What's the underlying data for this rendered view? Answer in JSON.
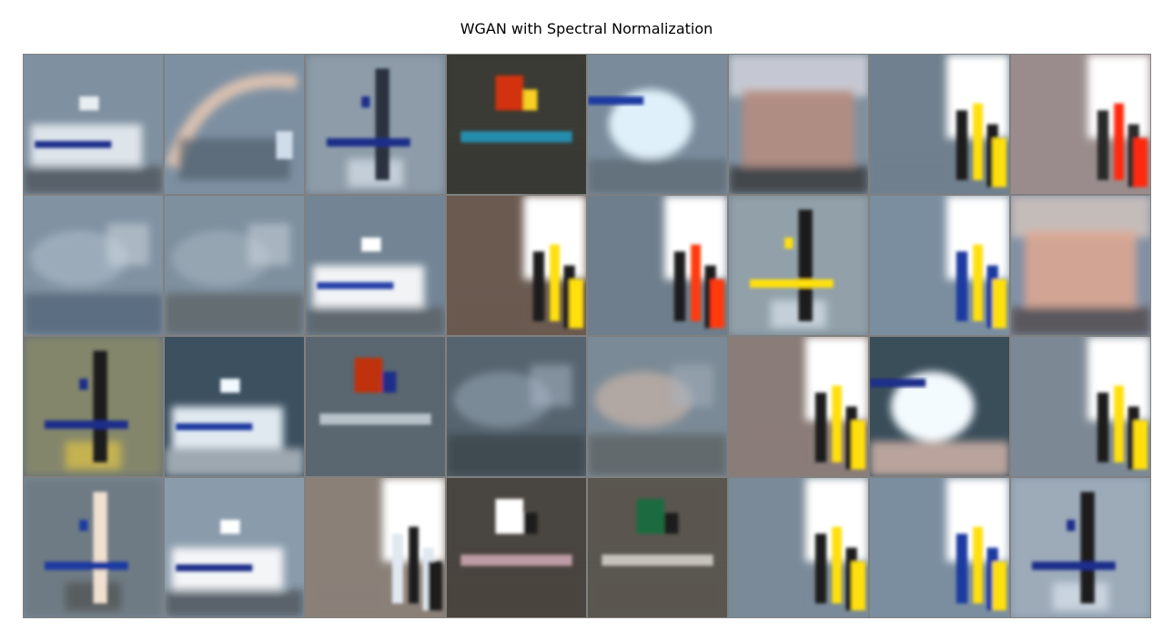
{
  "figure": {
    "title": "WGAN with Spectral Normalization"
  },
  "grid": {
    "rows": 4,
    "cols": 8,
    "cells": [
      {
        "id": "r1c1",
        "kind": "boat",
        "palette": [
          "#7f90a0",
          "#e8edf2",
          "#1c2f8a",
          "#303030"
        ]
      },
      {
        "id": "r1c2",
        "kind": "arc",
        "palette": [
          "#7d90a2",
          "#d8c0b0",
          "#4a5560",
          "#cfdcea"
        ]
      },
      {
        "id": "r1c3",
        "kind": "mast",
        "palette": [
          "#70808e",
          "#2a3040",
          "#1e2d8a",
          "#e6eef8"
        ]
      },
      {
        "id": "r1c4",
        "kind": "colorful",
        "palette": [
          "#3a3a34",
          "#d23010",
          "#f6d020",
          "#20b0e0"
        ]
      },
      {
        "id": "r1c5",
        "kind": "sky",
        "palette": [
          "#7a8c9c",
          "#e0f0fa",
          "#1c3aa0",
          "#5a6670"
        ]
      },
      {
        "id": "r1c6",
        "kind": "building",
        "palette": [
          "#8090a0",
          "#b88c7c",
          "#f4eef4",
          "#2a2a2a"
        ]
      },
      {
        "id": "r1c7",
        "kind": "bright",
        "palette": [
          "#70808e",
          "#ffffff",
          "#ffe010",
          "#1a1a1a"
        ]
      },
      {
        "id": "r1c8",
        "kind": "bright",
        "palette": [
          "#9a8c8c",
          "#ffffff",
          "#ff2a10",
          "#2a2a2a"
        ]
      },
      {
        "id": "r2c1",
        "kind": "haze",
        "palette": [
          "#8192a2",
          "#a6b6c4",
          "#394b60",
          "#d4dde6"
        ]
      },
      {
        "id": "r2c2",
        "kind": "haze",
        "palette": [
          "#7e8f9e",
          "#a0aebb",
          "#4a4a48",
          "#cfd9e4"
        ]
      },
      {
        "id": "r2c3",
        "kind": "boat",
        "palette": [
          "#738595",
          "#ffffff",
          "#2840a8",
          "#4a4a48"
        ]
      },
      {
        "id": "r2c4",
        "kind": "bright",
        "palette": [
          "#6a5a50",
          "#ffffff",
          "#ffe010",
          "#1a1a1a"
        ]
      },
      {
        "id": "r2c5",
        "kind": "bright",
        "palette": [
          "#6e7e8c",
          "#ffffff",
          "#ff3a10",
          "#1a1a1a"
        ]
      },
      {
        "id": "r2c6",
        "kind": "mast",
        "palette": [
          "#75868f",
          "#1a1a1a",
          "#ffe010",
          "#e6eef8"
        ]
      },
      {
        "id": "r2c7",
        "kind": "bright",
        "palette": [
          "#7a8ea0",
          "#ffffff",
          "#ffe010",
          "#1c3aa0"
        ]
      },
      {
        "id": "r2c8",
        "kind": "building",
        "palette": [
          "#8290a4",
          "#e0a890",
          "#f0d8c8",
          "#4a4040"
        ]
      },
      {
        "id": "r3c1",
        "kind": "mast",
        "palette": [
          "#606e7a",
          "#1a1a1a",
          "#1c2f8a",
          "#f0d040"
        ]
      },
      {
        "id": "r3c2",
        "kind": "boat",
        "palette": [
          "#3c5060",
          "#f2faff",
          "#1c3aa0",
          "#ffffff"
        ]
      },
      {
        "id": "r3c3",
        "kind": "colorful",
        "palette": [
          "#5a6670",
          "#c03010",
          "#1c2f8a",
          "#e0e8f0"
        ]
      },
      {
        "id": "r3c4",
        "kind": "haze",
        "palette": [
          "#566470",
          "#8a9aa8",
          "#2a3030",
          "#b0bccc"
        ]
      },
      {
        "id": "r3c5",
        "kind": "haze",
        "palette": [
          "#7a8a96",
          "#c8b4a8",
          "#4a4a48",
          "#a8b4c0"
        ]
      },
      {
        "id": "r3c6",
        "kind": "bright",
        "palette": [
          "#8a7c78",
          "#ffffff",
          "#ffe010",
          "#1a1a1a"
        ]
      },
      {
        "id": "r3c7",
        "kind": "sky",
        "palette": [
          "#3a4e5a",
          "#f4fbff",
          "#1c2f8a",
          "#f0c8b8"
        ]
      },
      {
        "id": "r3c8",
        "kind": "bright",
        "palette": [
          "#7c8894",
          "#ffffff",
          "#ffe010",
          "#1a1a1a"
        ]
      },
      {
        "id": "r4c1",
        "kind": "mast",
        "palette": [
          "#7a8a98",
          "#f0e0d0",
          "#1c3aa0",
          "#4a4a48"
        ]
      },
      {
        "id": "r4c2",
        "kind": "boat",
        "palette": [
          "#8a9cac",
          "#ffffff",
          "#1c2f8a",
          "#2a2a2a"
        ]
      },
      {
        "id": "r4c3",
        "kind": "bright",
        "palette": [
          "#8a8078",
          "#ffffff",
          "#1a1a1a",
          "#e0e8f0"
        ]
      },
      {
        "id": "r4c4",
        "kind": "colorful",
        "palette": [
          "#4a4440",
          "#ffffff",
          "#1a1a1a",
          "#f0c0d0"
        ]
      },
      {
        "id": "r4c5",
        "kind": "colorful",
        "palette": [
          "#5a5650",
          "#1a6a40",
          "#1a1a1a",
          "#f4f0e8"
        ]
      },
      {
        "id": "r4c6",
        "kind": "bright",
        "palette": [
          "#7a8a98",
          "#ffffff",
          "#ffe010",
          "#1a1a1a"
        ]
      },
      {
        "id": "r4c7",
        "kind": "bright",
        "palette": [
          "#7a8ea0",
          "#ffffff",
          "#ffe010",
          "#1c3aa0"
        ]
      },
      {
        "id": "r4c8",
        "kind": "mast",
        "palette": [
          "#8494a4",
          "#1a1a1a",
          "#1c2f8a",
          "#e6eef8"
        ]
      }
    ]
  }
}
